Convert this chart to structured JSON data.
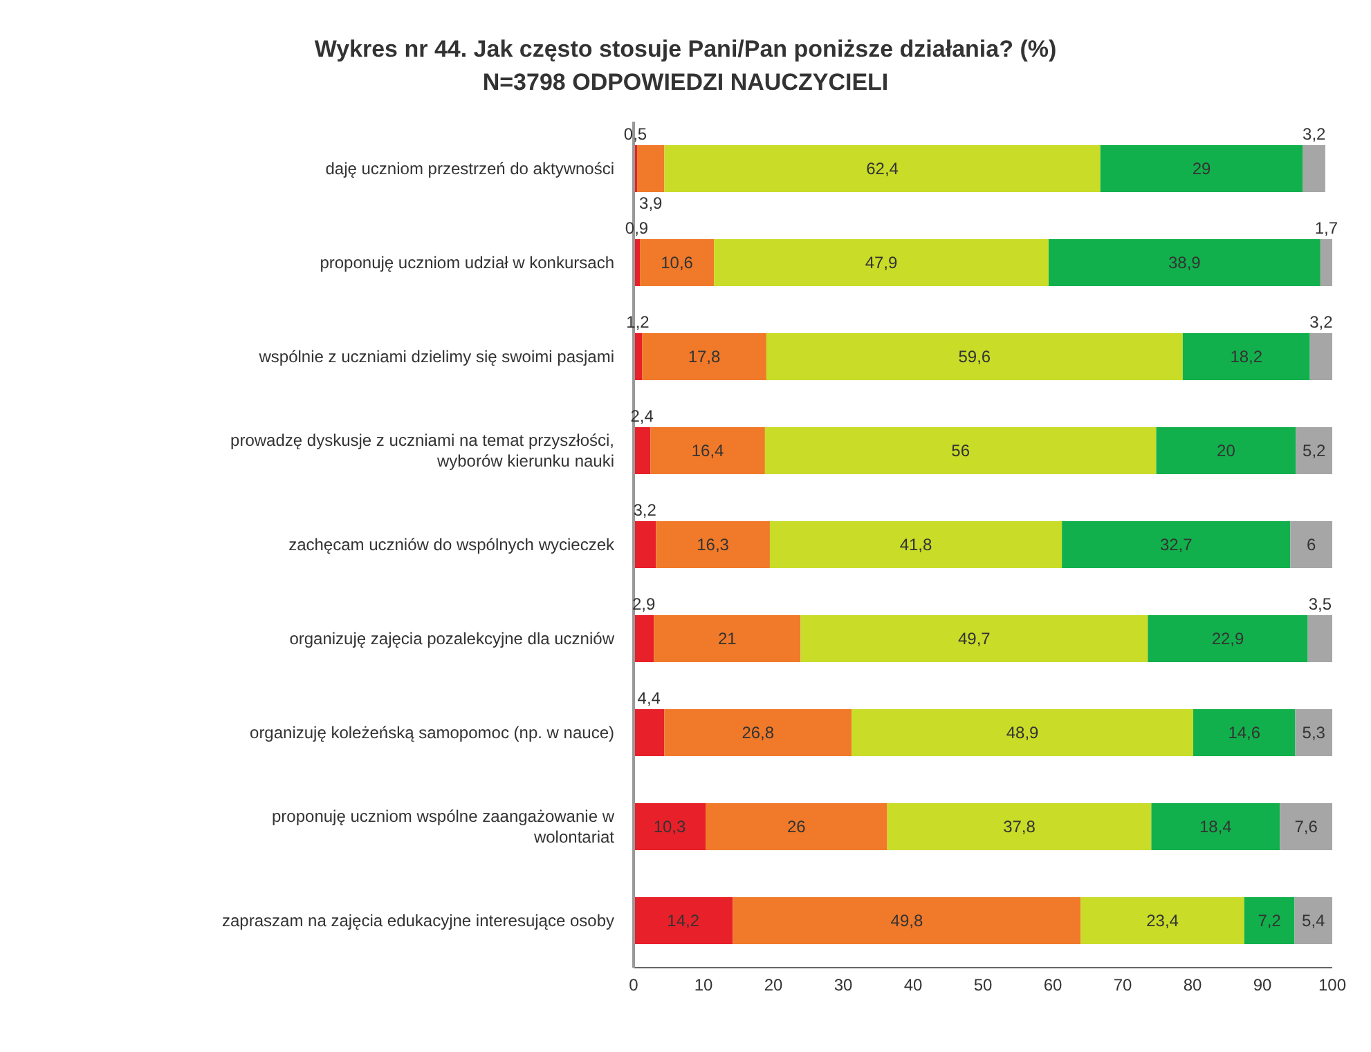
{
  "chart_data": {
    "type": "bar",
    "orientation": "horizontal",
    "stacked": true,
    "title": "Wykres nr 44. Jak często stosuje Pani/Pan poniższe działania? (%)",
    "subtitle": "N=3798 ODPOWIEDZI NAUCZYCIELI",
    "categories": [
      "daję uczniom przestrzeń do aktywności",
      "proponuję uczniom udział w konkursach",
      "wspólnie z uczniami dzielimy się swoimi pasjami",
      "prowadzę dyskusje z uczniami na temat przyszłości, wyborów kierunku nauki",
      "zachęcam uczniów do wspólnych wycieczek",
      "organizuję zajęcia pozalekcyjne dla uczniów",
      "organizuję koleżeńską samopomoc (np. w nauce)",
      "proponuję uczniom wspólne zaangażowanie w wolontariat",
      "zapraszam na zajęcia edukacyjne interesujące osoby"
    ],
    "series": [
      {
        "color": "#e8202a",
        "values": [
          0.5,
          0.9,
          1.2,
          2.4,
          3.2,
          2.9,
          4.4,
          10.3,
          14.2
        ],
        "value_labels": [
          "0,5",
          "0,9",
          "1,2",
          "2,4",
          "3,2",
          "2,9",
          "4,4",
          "10,3",
          "14,2"
        ]
      },
      {
        "color": "#f07a2a",
        "values": [
          3.9,
          10.6,
          17.8,
          16.4,
          16.3,
          21,
          26.8,
          26,
          49.8
        ],
        "value_labels": [
          "3,9",
          "10,6",
          "17,8",
          "16,4",
          "16,3",
          "21",
          "26,8",
          "26",
          "49,8"
        ]
      },
      {
        "color": "#c8dc28",
        "values": [
          62.4,
          47.9,
          59.6,
          56,
          41.8,
          49.7,
          48.9,
          37.8,
          23.4
        ],
        "value_labels": [
          "62,4",
          "47,9",
          "59,6",
          "56",
          "41,8",
          "49,7",
          "48,9",
          "37,8",
          "23,4"
        ]
      },
      {
        "color": "#12b04c",
        "values": [
          29,
          38.9,
          18.2,
          20,
          32.7,
          22.9,
          14.6,
          18.4,
          7.2
        ],
        "value_labels": [
          "29",
          "38,9",
          "18,2",
          "20",
          "32,7",
          "22,9",
          "14,6",
          "18,4",
          "7,2"
        ]
      },
      {
        "color": "#a6a6a6",
        "values": [
          3.2,
          1.7,
          3.2,
          5.2,
          6,
          3.5,
          5.3,
          7.6,
          5.4
        ],
        "value_labels": [
          "3,2",
          "1,7",
          "3,2",
          "5,2",
          "6",
          "3,5",
          "5,3",
          "7,6",
          "5,4"
        ]
      }
    ],
    "xlim": [
      0,
      100
    ],
    "xticks": [
      0,
      10,
      20,
      30,
      40,
      50,
      60,
      70,
      80,
      90,
      100
    ],
    "grid": false,
    "legend": false
  }
}
